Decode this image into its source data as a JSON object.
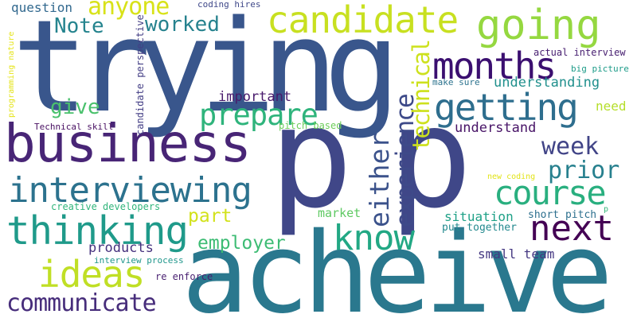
{
  "words": [
    {
      "text": "trying",
      "color": "#39568c",
      "rotated": false
    },
    {
      "text": "p",
      "color": "#404788",
      "rotated": false
    },
    {
      "text": "p",
      "color": "#3f4788",
      "rotated": false
    },
    {
      "text": "acheive",
      "color": "#2a788e",
      "rotated": false
    },
    {
      "text": "business",
      "color": "#482576",
      "rotated": false
    },
    {
      "text": "candidate",
      "color": "#c8e020",
      "rotated": false
    },
    {
      "text": "going",
      "color": "#95d840",
      "rotated": false
    },
    {
      "text": "interviewing",
      "color": "#2c728e",
      "rotated": false
    },
    {
      "text": "thinking",
      "color": "#1f9a8a",
      "rotated": false
    },
    {
      "text": "months",
      "color": "#3b0f70",
      "rotated": false
    },
    {
      "text": "getting",
      "color": "#2e6e8e",
      "rotated": false
    },
    {
      "text": "course",
      "color": "#29af7f",
      "rotated": false
    },
    {
      "text": "next",
      "color": "#440154",
      "rotated": false
    },
    {
      "text": "know",
      "color": "#22a884",
      "rotated": false
    },
    {
      "text": "ideas",
      "color": "#c0df25",
      "rotated": false
    },
    {
      "text": "communicate",
      "color": "#472d7b",
      "rotated": false
    },
    {
      "text": "prepare",
      "color": "#2fb47c",
      "rotated": false
    },
    {
      "text": "week",
      "color": "#414487",
      "rotated": false
    },
    {
      "text": "prior",
      "color": "#27808e",
      "rotated": false
    },
    {
      "text": "either",
      "color": "#3b528b",
      "rotated": true
    },
    {
      "text": "experience",
      "color": "#3e4a89",
      "rotated": true
    },
    {
      "text": "technical",
      "color": "#cde11d",
      "rotated": true
    },
    {
      "text": "anyone",
      "color": "#d8e219",
      "rotated": false
    },
    {
      "text": "worked",
      "color": "#26828e",
      "rotated": false
    },
    {
      "text": "Note",
      "color": "#25848e",
      "rotated": false
    },
    {
      "text": "give",
      "color": "#4ac16d",
      "rotated": false
    },
    {
      "text": "employer",
      "color": "#3dbc74",
      "rotated": false
    },
    {
      "text": "part",
      "color": "#d2e21b",
      "rotated": false
    },
    {
      "text": "understanding",
      "color": "#21908d",
      "rotated": false
    },
    {
      "text": "understand",
      "color": "#481467",
      "rotated": false
    },
    {
      "text": "important",
      "color": "#481a6c",
      "rotated": false
    },
    {
      "text": "products",
      "color": "#46327e",
      "rotated": false
    },
    {
      "text": "small team",
      "color": "#453882",
      "rotated": false
    },
    {
      "text": "need",
      "color": "#b5de2b",
      "rotated": false
    },
    {
      "text": "question",
      "color": "#31688e",
      "rotated": false
    },
    {
      "text": "market",
      "color": "#5ec962",
      "rotated": false
    },
    {
      "text": "situation",
      "color": "#1fa187",
      "rotated": false
    },
    {
      "text": "put together",
      "color": "#23898e",
      "rotated": false
    },
    {
      "text": "short pitch",
      "color": "#2d708e",
      "rotated": false
    },
    {
      "text": "actual interview",
      "color": "#482071",
      "rotated": false
    },
    {
      "text": "big picture",
      "color": "#1e9c89",
      "rotated": false
    },
    {
      "text": "make sure",
      "color": "#2c738e",
      "rotated": false
    },
    {
      "text": "pitch based",
      "color": "#6ccd5a",
      "rotated": false
    },
    {
      "text": "creative developers",
      "color": "#31b57b",
      "rotated": false
    },
    {
      "text": "Technical skill",
      "color": "#470e61",
      "rotated": false
    },
    {
      "text": "interview process",
      "color": "#1f968b",
      "rotated": false
    },
    {
      "text": "re enforce",
      "color": "#481f70",
      "rotated": false
    },
    {
      "text": "coding hires",
      "color": "#3f4889",
      "rotated": false
    },
    {
      "text": "new coding",
      "color": "#e2e418",
      "rotated": false
    },
    {
      "text": "p",
      "color": "#35b779",
      "rotated": false
    },
    {
      "text": "programming nature",
      "color": "#e5e419",
      "rotated": true
    },
    {
      "text": "candidate perspective",
      "color": "#433e85",
      "rotated": true
    }
  ]
}
